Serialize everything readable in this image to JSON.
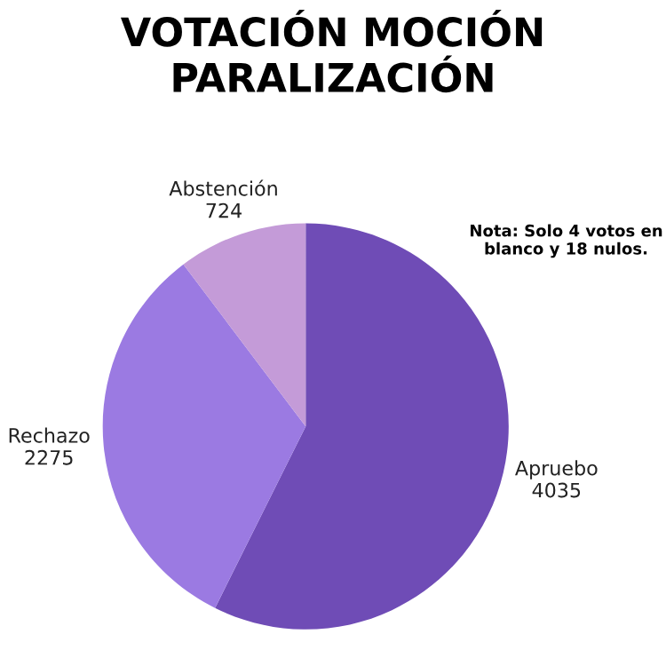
{
  "chart_data": {
    "type": "pie",
    "title": "VOTACIÓN MOCIÓN\nPARALIZACIÓN",
    "categories": [
      "Apruebo",
      "Rechazo",
      "Abstención"
    ],
    "values": [
      4035,
      2275,
      724
    ],
    "colors": [
      "#6f4cb6",
      "#9b7ae2",
      "#c49bd8"
    ],
    "data_labels": true,
    "annotations": [
      "Nota: Solo 4 votos en\nblanco y 18 nulos."
    ]
  }
}
